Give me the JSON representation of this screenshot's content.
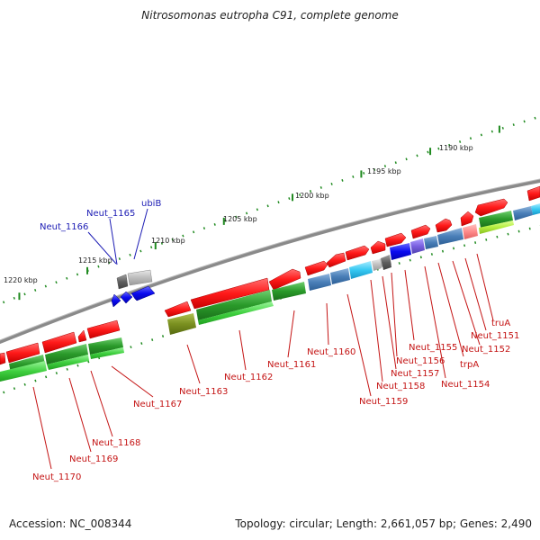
{
  "title": "Nitrosomonas eutropha C91, complete genome",
  "footer": {
    "accession": "Accession: NC_008344",
    "summary": "Topology: circular; Length: 2,661,057 bp; Genes: 2,490"
  },
  "colors": {
    "backbone": "#7f7f7f",
    "tick": "#1f8a1f",
    "scale_label": "#222222",
    "cds": "#ff1f1f",
    "blue_label": "#1c1cb4",
    "red_label": "#c41414"
  },
  "scale_labels": [
    "1190 kbp",
    "1195 kbp",
    "1200 kbp",
    "1205 kbp",
    "1210 kbp",
    "1215 kbp",
    "1220 kbp"
  ],
  "gene_labels": [
    {
      "text": "ubiB",
      "color": "blue"
    },
    {
      "text": "Neut_1165",
      "color": "blue"
    },
    {
      "text": "Neut_1166",
      "color": "blue"
    },
    {
      "text": "truA",
      "color": "red"
    },
    {
      "text": "Neut_1151",
      "color": "red"
    },
    {
      "text": "Neut_1152",
      "color": "red"
    },
    {
      "text": "trpA",
      "color": "red"
    },
    {
      "text": "Neut_1155",
      "color": "red"
    },
    {
      "text": "Neut_1156",
      "color": "red"
    },
    {
      "text": "Neut_1157",
      "color": "red"
    },
    {
      "text": "Neut_1154",
      "color": "red"
    },
    {
      "text": "Neut_1158",
      "color": "red"
    },
    {
      "text": "Neut_1159",
      "color": "red"
    },
    {
      "text": "Neut_1160",
      "color": "red"
    },
    {
      "text": "Neut_1161",
      "color": "red"
    },
    {
      "text": "Neut_1162",
      "color": "red"
    },
    {
      "text": "Neut_1163",
      "color": "red"
    },
    {
      "text": "Neut_1167",
      "color": "red"
    },
    {
      "text": "Neut_1168",
      "color": "red"
    },
    {
      "text": "Neut_1169",
      "color": "red"
    },
    {
      "text": "Neut_1170",
      "color": "red"
    }
  ]
}
